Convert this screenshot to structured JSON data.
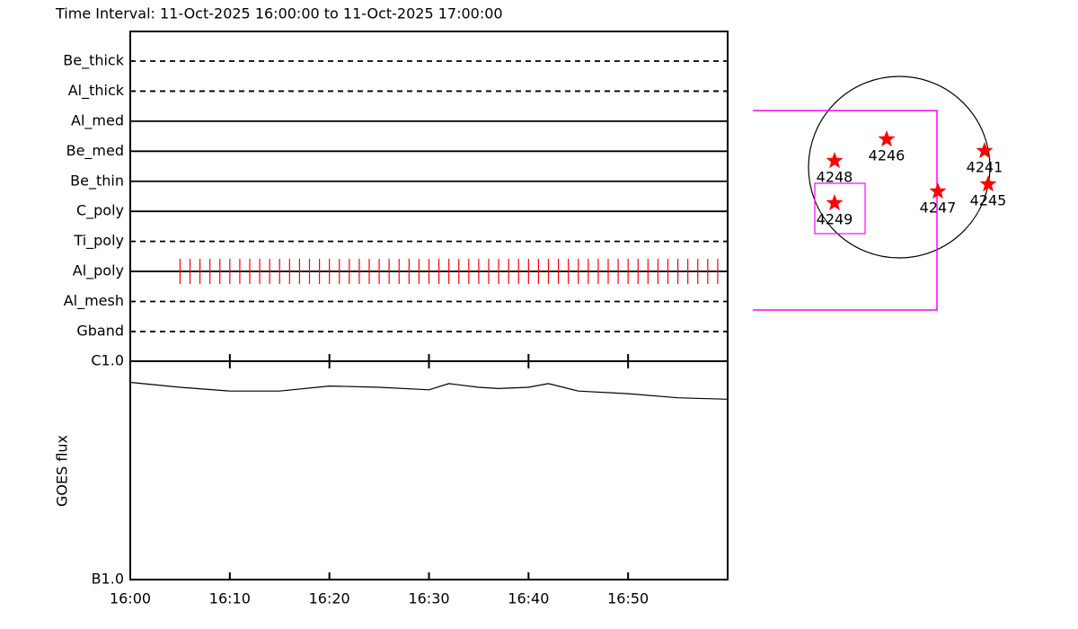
{
  "chart_data": [
    {
      "type": "timeline",
      "title": "Time Interval: 11-Oct-2025 16:00:00 to 11-Oct-2025 17:00:00",
      "filters": [
        {
          "name": "Be_thick",
          "line": "dashed"
        },
        {
          "name": "Al_thick",
          "line": "dashed"
        },
        {
          "name": "Al_med",
          "line": "solid"
        },
        {
          "name": "Be_med",
          "line": "solid"
        },
        {
          "name": "Be_thin",
          "line": "solid"
        },
        {
          "name": "C_poly",
          "line": "solid"
        },
        {
          "name": "Ti_poly",
          "line": "dashed"
        },
        {
          "name": "Al_poly",
          "line": "solid"
        },
        {
          "name": "Al_mesh",
          "line": "dashed"
        },
        {
          "name": "Gband",
          "line": "dashed"
        }
      ],
      "observations": {
        "filter": "Al_poly",
        "color": "#ff0000",
        "x": [
          "16:05",
          "16:06",
          "16:07",
          "16:08",
          "16:09",
          "16:10",
          "16:11",
          "16:12",
          "16:13",
          "16:14",
          "16:15",
          "16:16",
          "16:17",
          "16:18",
          "16:19",
          "16:20",
          "16:21",
          "16:22",
          "16:23",
          "16:24",
          "16:25",
          "16:26",
          "16:27",
          "16:28",
          "16:29",
          "16:30",
          "16:31",
          "16:32",
          "16:33",
          "16:34",
          "16:35",
          "16:36",
          "16:37",
          "16:38",
          "16:39",
          "16:40",
          "16:41",
          "16:42",
          "16:43",
          "16:44",
          "16:45",
          "16:46",
          "16:47",
          "16:48",
          "16:49",
          "16:50",
          "16:51",
          "16:52",
          "16:53",
          "16:54",
          "16:55",
          "16:56",
          "16:57",
          "16:58",
          "16:59"
        ]
      },
      "xlim": [
        "16:00",
        "17:00"
      ],
      "xticks": [
        "16:00",
        "16:10",
        "16:20",
        "16:30",
        "16:40",
        "16:50"
      ]
    },
    {
      "type": "line",
      "ylabel": "GOES flux",
      "log": true,
      "color": "#000000",
      "x": [
        "16:00",
        "16:05",
        "16:10",
        "16:15",
        "16:20",
        "16:25",
        "16:30",
        "16:32",
        "16:35",
        "16:37",
        "16:40",
        "16:42",
        "16:45",
        "16:50",
        "16:55",
        "17:00"
      ],
      "values": [
        8e-07,
        7.6e-07,
        7.3e-07,
        7.3e-07,
        7.7e-07,
        7.6e-07,
        7.4e-07,
        7.9e-07,
        7.6e-07,
        7.5e-07,
        7.6e-07,
        7.9e-07,
        7.3e-07,
        7.1e-07,
        6.8e-07,
        6.7e-07
      ],
      "xlim": [
        "16:00",
        "17:00"
      ],
      "xticks": [
        "16:00",
        "16:10",
        "16:20",
        "16:30",
        "16:40",
        "16:50"
      ],
      "ylim": [
        1e-07,
        1e-06
      ],
      "yticks": [
        {
          "value": 1e-06,
          "label": "C1.0"
        },
        {
          "value": 1e-07,
          "label": "B1.0"
        }
      ]
    },
    {
      "type": "map",
      "regions": [
        "4248",
        "4246",
        "4241",
        "4245",
        "4247",
        "4249"
      ],
      "fov_color": "#ff00ff",
      "star_color": "#ff0000"
    }
  ]
}
